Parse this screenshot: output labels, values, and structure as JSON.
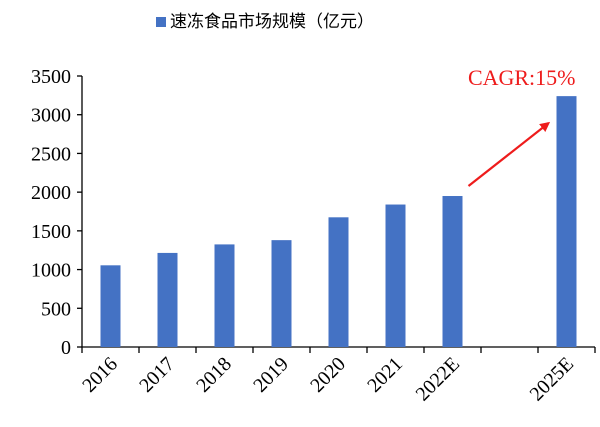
{
  "chart_data": {
    "type": "bar",
    "legend": {
      "label": "速冻食品市场规模（亿元）",
      "placement": "top"
    },
    "categories": [
      "2016",
      "2017",
      "2018",
      "2019",
      "2020",
      "2021",
      "2022E",
      "",
      "2025E"
    ],
    "series": [
      {
        "name": "速冻食品市场规模（亿元）",
        "values": [
          1055,
          1215,
          1325,
          1380,
          1675,
          1840,
          1950,
          null,
          3240
        ]
      }
    ],
    "ylim": [
      0,
      3500
    ],
    "yticks": [
      "0",
      "500",
      "1000",
      "1500",
      "2000",
      "2500",
      "3000",
      "3500"
    ],
    "annotation": {
      "text": "CAGR:15%",
      "color": "#ee1c1c",
      "from_category": "2022E",
      "to_category": "2025E"
    },
    "colors": {
      "bar": "#4472c4",
      "axis": "#000000",
      "annotation": "#ee1c1c"
    },
    "grid": false
  }
}
